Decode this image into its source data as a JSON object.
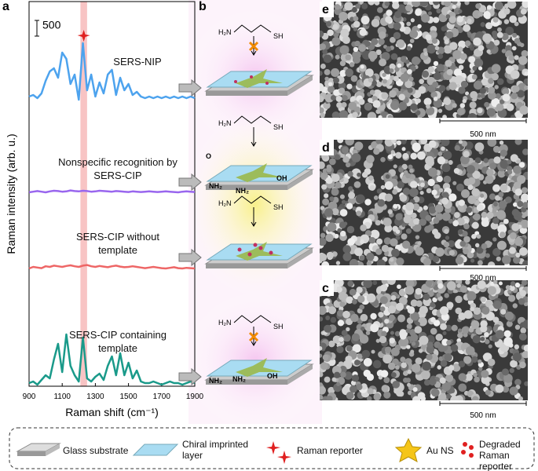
{
  "panel_labels": [
    "a",
    "b",
    "c",
    "d",
    "e"
  ],
  "chart_data": {
    "type": "line",
    "x_label": "Raman shift (cm⁻¹)",
    "y_label": "Raman intensity (arb. u.)",
    "scale_bar": 500,
    "scale_bar_label": "500",
    "highlight_range": [
      1210,
      1250
    ],
    "xlim": [
      900,
      1900
    ],
    "xticks": [
      900,
      1100,
      1300,
      1500,
      1700,
      1900
    ],
    "x": [
      900,
      925,
      950,
      975,
      1000,
      1025,
      1050,
      1075,
      1100,
      1125,
      1150,
      1175,
      1200,
      1225,
      1250,
      1275,
      1300,
      1325,
      1350,
      1375,
      1400,
      1425,
      1450,
      1475,
      1500,
      1525,
      1550,
      1575,
      1600,
      1625,
      1650,
      1675,
      1700,
      1725,
      1750,
      1775,
      1800,
      1825,
      1850,
      1875,
      1900
    ],
    "series": [
      {
        "name": "SERS-NIP",
        "color": "#4da3ee",
        "values": [
          100,
          150,
          50,
          200,
          600,
          900,
          1000,
          700,
          1500,
          1300,
          500,
          800,
          0,
          1800,
          300,
          800,
          100,
          550,
          200,
          800,
          950,
          150,
          700,
          300,
          500,
          150,
          250,
          100,
          50,
          100,
          50,
          100,
          50,
          100,
          50,
          100,
          50,
          100,
          50,
          100,
          50
        ]
      },
      {
        "name": "Nonspecific recognition by SERS-CIP",
        "color": "#9966ee",
        "values": [
          0,
          20,
          40,
          20,
          0,
          30,
          50,
          40,
          20,
          30,
          60,
          40,
          30,
          50,
          40,
          20,
          30,
          50,
          40,
          30,
          20,
          40,
          30,
          20,
          10,
          30,
          20,
          10,
          20,
          30,
          20,
          10,
          20,
          30,
          20,
          10,
          0,
          20,
          30,
          20,
          10
        ]
      },
      {
        "name": "SERS-CIP without template",
        "color": "#ee6666",
        "values": [
          50,
          100,
          80,
          60,
          120,
          100,
          140,
          120,
          100,
          130,
          150,
          120,
          100,
          140,
          160,
          120,
          100,
          130,
          110,
          90,
          120,
          140,
          110,
          90,
          100,
          120,
          100,
          80,
          60,
          80,
          100,
          80,
          60,
          50,
          70,
          90,
          60,
          50,
          70,
          60,
          50
        ]
      },
      {
        "name": "SERS-CIP containing template",
        "color": "#1a9a8a",
        "values": [
          50,
          100,
          0,
          150,
          300,
          200,
          800,
          1300,
          400,
          1600,
          600,
          300,
          100,
          1500,
          200,
          100,
          250,
          350,
          150,
          600,
          900,
          300,
          1000,
          300,
          700,
          200,
          450,
          100,
          50,
          50,
          100,
          50,
          0,
          50,
          100,
          50,
          50,
          0,
          50,
          100,
          50
        ]
      }
    ]
  },
  "schematic": {
    "amine": "H₂N",
    "thiol": "SH",
    "groups_2": [
      "O",
      "NH₂",
      "NH₂",
      "OH"
    ],
    "groups_4": [
      "NH₂",
      "NH₂",
      "OH"
    ]
  },
  "sem": [
    {
      "label": "e",
      "scale": "500 nm"
    },
    {
      "label": "d",
      "scale": "500 nm"
    },
    {
      "label": "c",
      "scale": "500 nm"
    }
  ],
  "legend": [
    "Glass substrate",
    "Chiral imprinted layer",
    "Raman reporter",
    "Au NS",
    "Degraded Raman reporter"
  ]
}
